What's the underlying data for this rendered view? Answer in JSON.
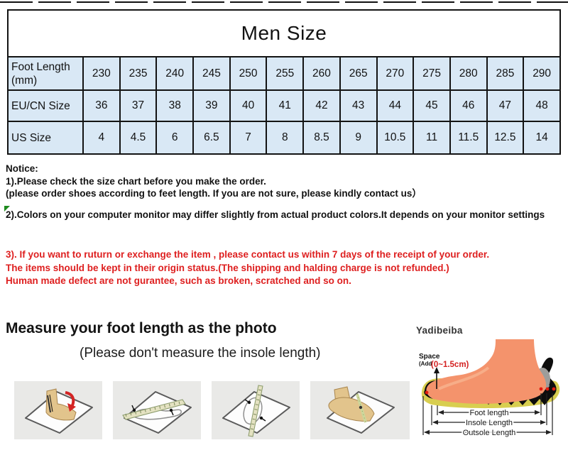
{
  "colors": {
    "red": "#de1f1f",
    "cell-bg": "#d9e8f5",
    "green": "#1e8a1e",
    "card-bg": "#e9e9e7",
    "skin": "#f4936c"
  },
  "size_table": {
    "title": "Men Size",
    "rows": [
      {
        "label": "Foot Length\n(mm)",
        "values": [
          "230",
          "235",
          "240",
          "245",
          "250",
          "255",
          "260",
          "265",
          "270",
          "275",
          "280",
          "285",
          "290"
        ]
      },
      {
        "label": "EU/CN Size",
        "values": [
          "36",
          "37",
          "38",
          "39",
          "40",
          "41",
          "42",
          "43",
          "44",
          "45",
          "46",
          "47",
          "48"
        ]
      },
      {
        "label": "US Size",
        "values": [
          "4",
          "4.5",
          "6",
          "6.5",
          "7",
          "8",
          "8.5",
          "9",
          "10.5",
          "11",
          "11.5",
          "12.5",
          "14"
        ]
      }
    ]
  },
  "notice": {
    "title": "Notice:",
    "line1": "1).Please check the size chart before you make the order.",
    "line2": "(please order shoes according to feet length. If you are not sure, please kindly contact us）",
    "line3": "2).Colors on your computer monitor may differ slightly from actual product colors.It depends on your monitor settings",
    "red_lines": [
      "3). If you want to ruturn or exchange the item , please contact us within 7 days of the receipt of your order.",
      "The items should be kept in their origin status.(The shipping and halding charge is not refunded.)",
      "Human made defect are not gurantee, such as broken, scratched and so on."
    ]
  },
  "measure_section": {
    "heading": "Measure your foot length as the photo",
    "subheading": "(Please don't measure the insole length)",
    "brand": "Yadibeiba"
  },
  "diagram": {
    "space_label": "Space",
    "add_label": "(Add",
    "add_value": "(0~1.5cm)",
    "foot_length_label": "Foot length",
    "insole_length_label": "Insole Length",
    "outsole_length_label": "Outsole Length"
  }
}
